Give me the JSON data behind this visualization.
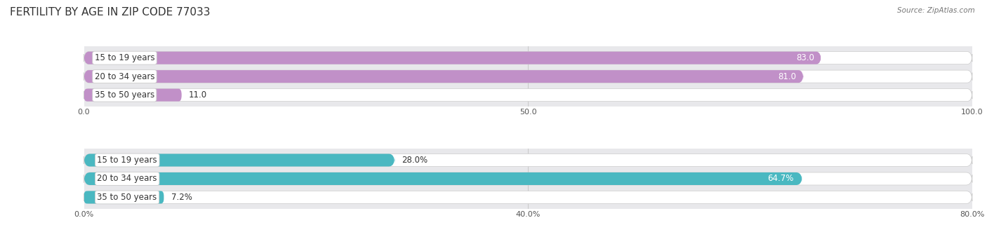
{
  "title": "FERTILITY BY AGE IN ZIP CODE 77033",
  "source": "Source: ZipAtlas.com",
  "top_chart": {
    "categories": [
      "15 to 19 years",
      "20 to 34 years",
      "35 to 50 years"
    ],
    "values": [
      83.0,
      81.0,
      11.0
    ],
    "bar_color": "#c190c8",
    "xlim_max": 100.0,
    "xticks": [
      0.0,
      50.0,
      100.0
    ],
    "xtick_labels": [
      "0.0",
      "50.0",
      "100.0"
    ],
    "value_labels": [
      "83.0",
      "81.0",
      "11.0"
    ],
    "value_white": [
      true,
      true,
      false
    ]
  },
  "bottom_chart": {
    "categories": [
      "15 to 19 years",
      "20 to 34 years",
      "35 to 50 years"
    ],
    "values": [
      28.0,
      64.7,
      7.2
    ],
    "bar_color": "#4ab8c1",
    "xlim_max": 80.0,
    "xticks": [
      0.0,
      40.0,
      80.0
    ],
    "xtick_labels": [
      "0.0%",
      "40.0%",
      "80.0%"
    ],
    "value_labels": [
      "28.0%",
      "64.7%",
      "7.2%"
    ],
    "value_white": [
      false,
      true,
      false
    ]
  },
  "row_bg_color": "#e8e8eb",
  "bar_bg_color": "#f5f5f7",
  "label_fontsize": 8.5,
  "value_fontsize": 8.5,
  "title_fontsize": 11,
  "source_fontsize": 7.5
}
